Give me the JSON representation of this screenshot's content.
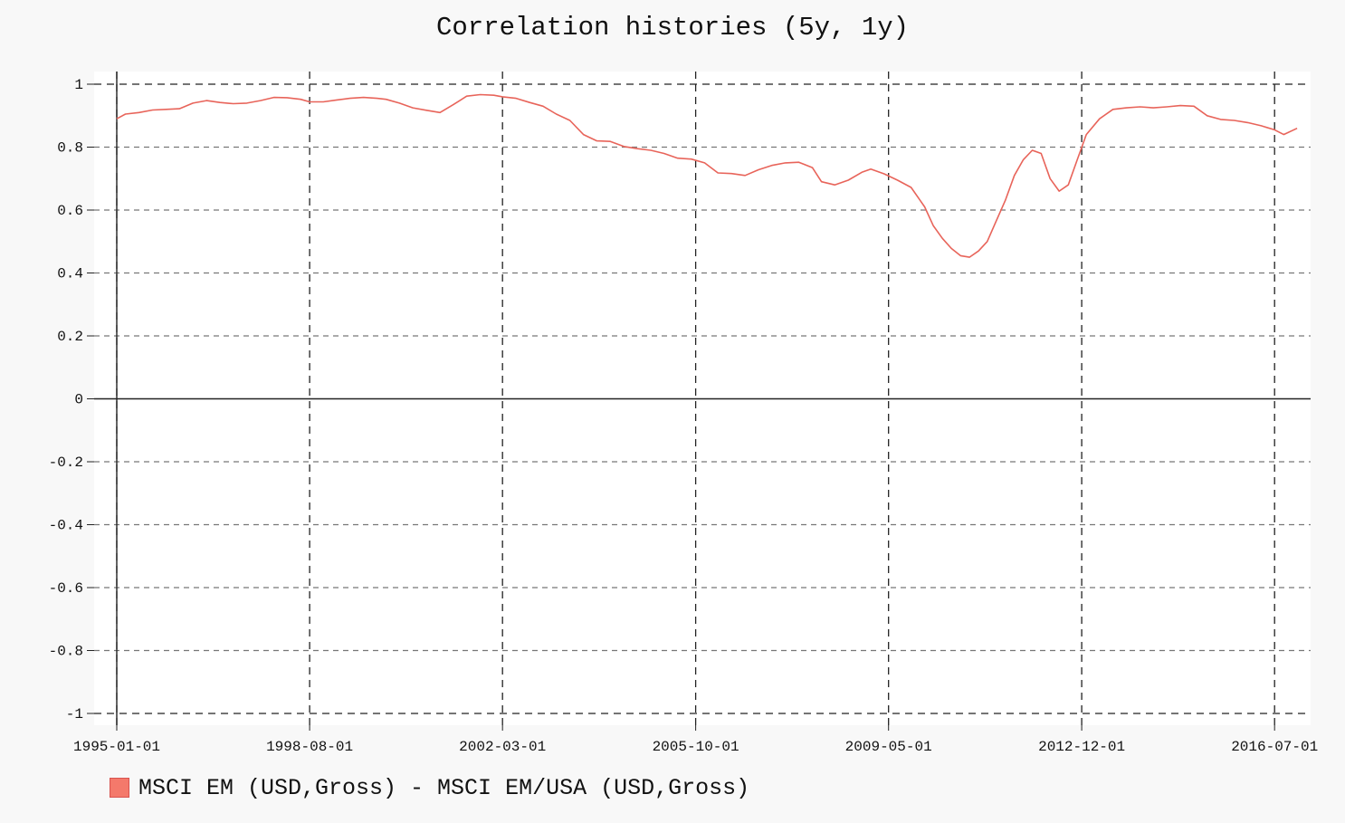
{
  "chart_data": {
    "type": "line",
    "title": "Correlation histories (5y, 1y)",
    "xlabel": "",
    "ylabel": "",
    "x_ticks": [
      "1995-01-01",
      "1998-08-01",
      "2002-03-01",
      "2005-10-01",
      "2009-05-01",
      "2012-12-01",
      "2016-07-01"
    ],
    "y_ticks": [
      "1",
      "0.8",
      "0.6",
      "0.4",
      "0.2",
      "0",
      "-0.2",
      "-0.4",
      "-0.6",
      "-0.8",
      "-1"
    ],
    "ylim": [
      -1,
      1
    ],
    "xlim": [
      "1995-01-01",
      "2016-12-01"
    ],
    "grid": true,
    "legend_position": "bottom-left",
    "series": [
      {
        "name": "MSCI EM (USD,Gross) - MSCI EM/USA (USD,Gross)",
        "color": "#e8645a",
        "points": [
          [
            "1995-01-01",
            0.89
          ],
          [
            "1995-03-01",
            0.905
          ],
          [
            "1995-06-01",
            0.91
          ],
          [
            "1995-09-01",
            0.918
          ],
          [
            "1995-12-01",
            0.92
          ],
          [
            "1996-03-01",
            0.922
          ],
          [
            "1996-06-01",
            0.94
          ],
          [
            "1996-09-01",
            0.948
          ],
          [
            "1996-12-01",
            0.942
          ],
          [
            "1997-03-01",
            0.938
          ],
          [
            "1997-06-01",
            0.94
          ],
          [
            "1997-09-01",
            0.948
          ],
          [
            "1997-12-01",
            0.958
          ],
          [
            "1998-03-01",
            0.957
          ],
          [
            "1998-06-01",
            0.952
          ],
          [
            "1998-08-01",
            0.944
          ],
          [
            "1998-11-01",
            0.944
          ],
          [
            "1999-02-01",
            0.95
          ],
          [
            "1999-05-01",
            0.955
          ],
          [
            "1999-08-01",
            0.958
          ],
          [
            "1999-11-01",
            0.955
          ],
          [
            "2000-01-01",
            0.952
          ],
          [
            "2000-04-01",
            0.94
          ],
          [
            "2000-07-01",
            0.925
          ],
          [
            "2000-10-01",
            0.917
          ],
          [
            "2001-01-01",
            0.91
          ],
          [
            "2001-04-01",
            0.935
          ],
          [
            "2001-07-01",
            0.962
          ],
          [
            "2001-10-01",
            0.967
          ],
          [
            "2002-01-01",
            0.965
          ],
          [
            "2002-03-01",
            0.96
          ],
          [
            "2002-06-01",
            0.955
          ],
          [
            "2002-09-01",
            0.942
          ],
          [
            "2002-12-01",
            0.93
          ],
          [
            "2003-03-01",
            0.905
          ],
          [
            "2003-06-01",
            0.885
          ],
          [
            "2003-09-01",
            0.84
          ],
          [
            "2003-12-01",
            0.82
          ],
          [
            "2004-03-01",
            0.818
          ],
          [
            "2004-06-01",
            0.802
          ],
          [
            "2004-09-01",
            0.795
          ],
          [
            "2004-12-01",
            0.79
          ],
          [
            "2005-03-01",
            0.78
          ],
          [
            "2005-06-01",
            0.765
          ],
          [
            "2005-09-01",
            0.762
          ],
          [
            "2005-12-01",
            0.75
          ],
          [
            "2006-03-01",
            0.718
          ],
          [
            "2006-06-01",
            0.716
          ],
          [
            "2006-09-01",
            0.71
          ],
          [
            "2006-12-01",
            0.728
          ],
          [
            "2007-03-01",
            0.742
          ],
          [
            "2007-06-01",
            0.75
          ],
          [
            "2007-09-01",
            0.752
          ],
          [
            "2007-12-01",
            0.735
          ],
          [
            "2008-02-01",
            0.69
          ],
          [
            "2008-05-01",
            0.68
          ],
          [
            "2008-08-01",
            0.695
          ],
          [
            "2008-11-01",
            0.72
          ],
          [
            "2009-01-01",
            0.73
          ],
          [
            "2009-04-01",
            0.715
          ],
          [
            "2009-07-01",
            0.695
          ],
          [
            "2009-10-01",
            0.672
          ],
          [
            "2010-01-01",
            0.61
          ],
          [
            "2010-03-01",
            0.55
          ],
          [
            "2010-05-01",
            0.51
          ],
          [
            "2010-07-01",
            0.478
          ],
          [
            "2010-09-01",
            0.455
          ],
          [
            "2010-11-01",
            0.45
          ],
          [
            "2011-01-01",
            0.47
          ],
          [
            "2011-03-01",
            0.5
          ],
          [
            "2011-05-01",
            0.565
          ],
          [
            "2011-07-01",
            0.63
          ],
          [
            "2011-09-01",
            0.71
          ],
          [
            "2011-11-01",
            0.76
          ],
          [
            "2012-01-01",
            0.79
          ],
          [
            "2012-03-01",
            0.78
          ],
          [
            "2012-05-01",
            0.7
          ],
          [
            "2012-07-01",
            0.66
          ],
          [
            "2012-09-01",
            0.68
          ],
          [
            "2012-11-01",
            0.76
          ],
          [
            "2013-01-01",
            0.84
          ],
          [
            "2013-04-01",
            0.89
          ],
          [
            "2013-07-01",
            0.92
          ],
          [
            "2013-10-01",
            0.925
          ],
          [
            "2014-01-01",
            0.928
          ],
          [
            "2014-04-01",
            0.925
          ],
          [
            "2014-07-01",
            0.928
          ],
          [
            "2014-10-01",
            0.932
          ],
          [
            "2015-01-01",
            0.93
          ],
          [
            "2015-04-01",
            0.9
          ],
          [
            "2015-07-01",
            0.888
          ],
          [
            "2015-10-01",
            0.885
          ],
          [
            "2016-01-01",
            0.878
          ],
          [
            "2016-04-01",
            0.868
          ],
          [
            "2016-07-01",
            0.855
          ],
          [
            "2016-09-01",
            0.84
          ],
          [
            "2016-12-01",
            0.86
          ]
        ]
      }
    ]
  },
  "legend": {
    "items": [
      {
        "label": "MSCI EM (USD,Gross) - MSCI EM/USA (USD,Gross)",
        "swatch_color": "#f4796b"
      }
    ]
  }
}
